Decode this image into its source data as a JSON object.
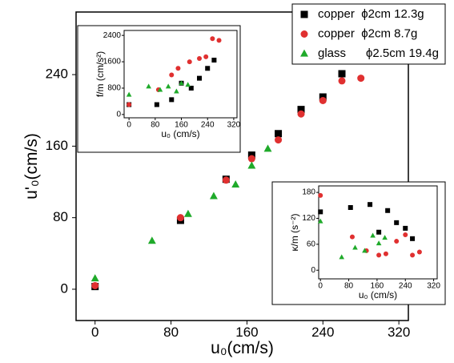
{
  "chart_data": [
    {
      "type": "scatter",
      "xlabel": "u₀(cm/s)",
      "ylabel": "u'₀(cm/s)",
      "xlim": [
        -20,
        330
      ],
      "ylim": [
        -35,
        310
      ],
      "xticks": [
        0,
        80,
        160,
        240,
        320
      ],
      "yticks": [
        0,
        80,
        160,
        240
      ],
      "legend": "upper right",
      "series": [
        {
          "name": "copper  ϕ2cm 12.3g",
          "color": "#000000",
          "marker": "square",
          "x": [
            0,
            90,
            138,
            165,
            193,
            217,
            240,
            260
          ],
          "values": [
            3,
            77,
            123,
            150,
            174,
            201,
            215,
            241
          ]
        },
        {
          "name": "copper  ϕ2cm 8.7g",
          "color": "#e03030",
          "marker": "circle",
          "x": [
            0,
            90,
            138,
            165,
            193,
            217,
            240,
            260,
            280
          ],
          "values": [
            4,
            80,
            122,
            146,
            167,
            196,
            211,
            233,
            236
          ]
        },
        {
          "name": "glass      ϕ2.5cm 19.4g",
          "color": "#1faa2a",
          "marker": "triangle",
          "x": [
            0,
            60,
            98,
            125,
            148,
            165,
            182
          ],
          "values": [
            12,
            54,
            84,
            104,
            117,
            138,
            157
          ]
        }
      ]
    },
    {
      "type": "scatter",
      "xlabel": "u₀ (cm/s)",
      "ylabel": "f/m (cm/s²)",
      "xlim": [
        -15,
        330
      ],
      "ylim": [
        -100,
        2550
      ],
      "xticks": [
        0,
        80,
        160,
        240,
        320
      ],
      "yticks": [
        0,
        800,
        1600,
        2400
      ],
      "series": [
        {
          "color": "#000000",
          "marker": "square",
          "x": [
            0,
            85,
            130,
            160,
            190,
            215,
            240,
            260
          ],
          "values": [
            300,
            300,
            450,
            950,
            800,
            1100,
            1400,
            1650
          ]
        },
        {
          "color": "#e03030",
          "marker": "circle",
          "x": [
            0,
            90,
            130,
            150,
            185,
            215,
            235,
            255,
            275
          ],
          "values": [
            300,
            750,
            1200,
            1400,
            1600,
            1700,
            1750,
            2300,
            2250
          ]
        },
        {
          "color": "#1faa2a",
          "marker": "triangle",
          "x": [
            0,
            60,
            95,
            120,
            145,
            160,
            180
          ],
          "values": [
            600,
            850,
            750,
            850,
            700,
            950,
            900
          ]
        }
      ]
    },
    {
      "type": "scatter",
      "xlabel": "u₀ (cm/s)",
      "ylabel": "κ/m (s⁻²)",
      "xlim": [
        -5,
        330
      ],
      "ylim": [
        -20,
        195
      ],
      "xticks": [
        0,
        80,
        160,
        240,
        320
      ],
      "yticks": [
        0,
        60,
        120,
        180
      ],
      "series": [
        {
          "color": "#000000",
          "marker": "square",
          "x": [
            0,
            85,
            140,
            165,
            190,
            215,
            240,
            260
          ],
          "values": [
            135,
            145,
            152,
            88,
            138,
            110,
            97,
            73
          ]
        },
        {
          "color": "#e03030",
          "marker": "circle",
          "x": [
            0,
            90,
            130,
            165,
            185,
            215,
            240,
            260,
            280
          ],
          "values": [
            173,
            77,
            45,
            35,
            38,
            67,
            82,
            35,
            42
          ]
        },
        {
          "color": "#1faa2a",
          "marker": "triangle",
          "x": [
            0,
            60,
            98,
            125,
            148,
            165,
            182
          ],
          "values": [
            113,
            30,
            52,
            45,
            80,
            62,
            75
          ]
        }
      ]
    }
  ]
}
